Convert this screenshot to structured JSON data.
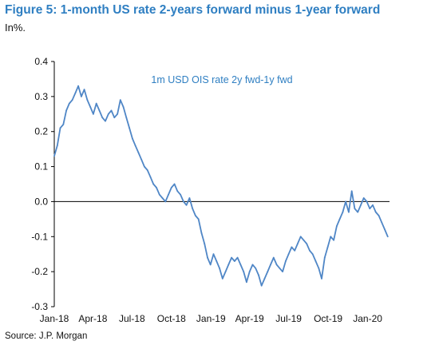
{
  "figure": {
    "title": "Figure 5: 1-month US rate 2-years forward minus 1-year forward",
    "unit": "In%.",
    "source": "Source: J.P. Morgan"
  },
  "chart_data": {
    "type": "line",
    "title": "Figure 5: 1-month US rate 2-years forward minus 1-year forward",
    "xlabel": "",
    "ylabel": "In%.",
    "ylim": [
      -0.3,
      0.4
    ],
    "yticks": [
      {
        "v": 0.4,
        "label": "0.4"
      },
      {
        "v": 0.3,
        "label": "0.3"
      },
      {
        "v": 0.2,
        "label": "0.2"
      },
      {
        "v": 0.1,
        "label": "0.1"
      },
      {
        "v": 0.0,
        "label": "0.0"
      },
      {
        "v": -0.1,
        "label": "-0.1"
      },
      {
        "v": -0.2,
        "label": "-0.2"
      },
      {
        "v": -0.3,
        "label": "-0.3"
      }
    ],
    "xlim": [
      "2018-01-01",
      "2020-02-21"
    ],
    "xticks": [
      {
        "date": "2018-01-01",
        "label": "Jan-18"
      },
      {
        "date": "2018-04-01",
        "label": "Apr-18"
      },
      {
        "date": "2018-07-01",
        "label": "Jul-18"
      },
      {
        "date": "2018-10-01",
        "label": "Oct-18"
      },
      {
        "date": "2019-01-01",
        "label": "Jan-19"
      },
      {
        "date": "2019-04-01",
        "label": "Apr-19"
      },
      {
        "date": "2019-07-01",
        "label": "Jul-19"
      },
      {
        "date": "2019-10-01",
        "label": "Oct-19"
      },
      {
        "date": "2020-01-01",
        "label": "Jan-20"
      }
    ],
    "grid": false,
    "legend": "top-center",
    "series_color": "#4f86c6",
    "series": [
      {
        "name": "1m USD OIS rate 2y fwd-1y fwd",
        "points": [
          [
            "2018-01-01",
            0.13
          ],
          [
            "2018-01-08",
            0.16
          ],
          [
            "2018-01-15",
            0.21
          ],
          [
            "2018-01-22",
            0.22
          ],
          [
            "2018-01-29",
            0.26
          ],
          [
            "2018-02-05",
            0.28
          ],
          [
            "2018-02-12",
            0.29
          ],
          [
            "2018-02-19",
            0.31
          ],
          [
            "2018-02-26",
            0.33
          ],
          [
            "2018-03-05",
            0.3
          ],
          [
            "2018-03-12",
            0.32
          ],
          [
            "2018-03-19",
            0.29
          ],
          [
            "2018-03-26",
            0.27
          ],
          [
            "2018-04-02",
            0.25
          ],
          [
            "2018-04-09",
            0.28
          ],
          [
            "2018-04-16",
            0.26
          ],
          [
            "2018-04-23",
            0.24
          ],
          [
            "2018-04-30",
            0.23
          ],
          [
            "2018-05-07",
            0.25
          ],
          [
            "2018-05-14",
            0.26
          ],
          [
            "2018-05-21",
            0.24
          ],
          [
            "2018-05-28",
            0.25
          ],
          [
            "2018-06-04",
            0.29
          ],
          [
            "2018-06-11",
            0.27
          ],
          [
            "2018-06-18",
            0.24
          ],
          [
            "2018-06-25",
            0.21
          ],
          [
            "2018-07-02",
            0.18
          ],
          [
            "2018-07-09",
            0.16
          ],
          [
            "2018-07-16",
            0.14
          ],
          [
            "2018-07-23",
            0.12
          ],
          [
            "2018-07-30",
            0.1
          ],
          [
            "2018-08-06",
            0.09
          ],
          [
            "2018-08-13",
            0.07
          ],
          [
            "2018-08-20",
            0.05
          ],
          [
            "2018-08-27",
            0.04
          ],
          [
            "2018-09-03",
            0.02
          ],
          [
            "2018-09-10",
            0.01
          ],
          [
            "2018-09-17",
            0.0
          ],
          [
            "2018-09-24",
            0.02
          ],
          [
            "2018-10-01",
            0.04
          ],
          [
            "2018-10-08",
            0.05
          ],
          [
            "2018-10-15",
            0.03
          ],
          [
            "2018-10-22",
            0.02
          ],
          [
            "2018-10-29",
            0.0
          ],
          [
            "2018-11-05",
            -0.01
          ],
          [
            "2018-11-12",
            0.01
          ],
          [
            "2018-11-19",
            -0.02
          ],
          [
            "2018-11-26",
            -0.04
          ],
          [
            "2018-12-03",
            -0.05
          ],
          [
            "2018-12-10",
            -0.09
          ],
          [
            "2018-12-17",
            -0.12
          ],
          [
            "2018-12-24",
            -0.16
          ],
          [
            "2018-12-31",
            -0.18
          ],
          [
            "2019-01-07",
            -0.15
          ],
          [
            "2019-01-14",
            -0.17
          ],
          [
            "2019-01-21",
            -0.19
          ],
          [
            "2019-01-28",
            -0.22
          ],
          [
            "2019-02-04",
            -0.2
          ],
          [
            "2019-02-11",
            -0.18
          ],
          [
            "2019-02-18",
            -0.16
          ],
          [
            "2019-02-25",
            -0.17
          ],
          [
            "2019-03-04",
            -0.16
          ],
          [
            "2019-03-11",
            -0.18
          ],
          [
            "2019-03-18",
            -0.2
          ],
          [
            "2019-03-25",
            -0.23
          ],
          [
            "2019-04-01",
            -0.2
          ],
          [
            "2019-04-08",
            -0.18
          ],
          [
            "2019-04-15",
            -0.19
          ],
          [
            "2019-04-22",
            -0.21
          ],
          [
            "2019-04-29",
            -0.24
          ],
          [
            "2019-05-06",
            -0.22
          ],
          [
            "2019-05-13",
            -0.2
          ],
          [
            "2019-05-20",
            -0.18
          ],
          [
            "2019-05-27",
            -0.16
          ],
          [
            "2019-06-03",
            -0.18
          ],
          [
            "2019-06-10",
            -0.19
          ],
          [
            "2019-06-17",
            -0.2
          ],
          [
            "2019-06-24",
            -0.17
          ],
          [
            "2019-07-01",
            -0.15
          ],
          [
            "2019-07-08",
            -0.13
          ],
          [
            "2019-07-15",
            -0.14
          ],
          [
            "2019-07-22",
            -0.12
          ],
          [
            "2019-07-29",
            -0.1
          ],
          [
            "2019-08-05",
            -0.11
          ],
          [
            "2019-08-12",
            -0.12
          ],
          [
            "2019-08-19",
            -0.14
          ],
          [
            "2019-08-26",
            -0.15
          ],
          [
            "2019-09-02",
            -0.17
          ],
          [
            "2019-09-09",
            -0.19
          ],
          [
            "2019-09-16",
            -0.22
          ],
          [
            "2019-09-23",
            -0.16
          ],
          [
            "2019-09-30",
            -0.13
          ],
          [
            "2019-10-07",
            -0.1
          ],
          [
            "2019-10-14",
            -0.11
          ],
          [
            "2019-10-21",
            -0.07
          ],
          [
            "2019-10-28",
            -0.05
          ],
          [
            "2019-11-04",
            -0.03
          ],
          [
            "2019-11-11",
            0.0
          ],
          [
            "2019-11-18",
            -0.03
          ],
          [
            "2019-11-25",
            0.03
          ],
          [
            "2019-12-02",
            -0.02
          ],
          [
            "2019-12-09",
            -0.03
          ],
          [
            "2019-12-16",
            -0.01
          ],
          [
            "2019-12-23",
            0.01
          ],
          [
            "2019-12-30",
            0.0
          ],
          [
            "2020-01-06",
            -0.02
          ],
          [
            "2020-01-13",
            -0.01
          ],
          [
            "2020-01-20",
            -0.03
          ],
          [
            "2020-01-27",
            -0.04
          ],
          [
            "2020-02-03",
            -0.06
          ],
          [
            "2020-02-10",
            -0.08
          ],
          [
            "2020-02-17",
            -0.1
          ]
        ]
      }
    ]
  }
}
